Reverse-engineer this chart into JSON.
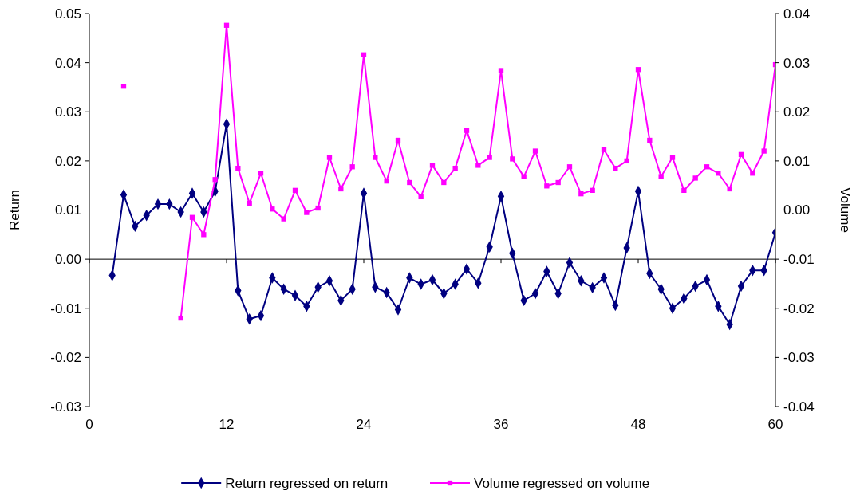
{
  "chart_data": {
    "type": "line",
    "xlabel": null,
    "ylabel": "Return",
    "y2label": "Volume",
    "x": [
      2,
      3,
      4,
      5,
      6,
      7,
      8,
      9,
      10,
      11,
      12,
      13,
      14,
      15,
      16,
      17,
      18,
      19,
      20,
      21,
      22,
      23,
      24,
      25,
      26,
      27,
      28,
      29,
      30,
      31,
      32,
      33,
      34,
      35,
      36,
      37,
      38,
      39,
      40,
      41,
      42,
      43,
      44,
      45,
      46,
      47,
      48,
      49,
      50,
      51,
      52,
      53,
      54,
      55,
      56,
      57,
      58,
      59,
      60
    ],
    "series": [
      {
        "name": "Return regressed on return",
        "color": "#000080",
        "marker": "diamond",
        "values": [
          -0.0033,
          0.0131,
          0.0067,
          0.0089,
          0.0112,
          0.0112,
          0.0096,
          0.0134,
          0.0096,
          0.0138,
          0.0275,
          -0.0064,
          -0.0122,
          -0.0115,
          -0.0038,
          -0.0061,
          -0.0074,
          -0.0096,
          -0.0057,
          -0.0044,
          -0.0084,
          -0.0061,
          0.0134,
          -0.0057,
          -0.0068,
          -0.0103,
          -0.0038,
          -0.0051,
          -0.0042,
          -0.007,
          -0.0051,
          -0.002,
          -0.0049,
          0.0025,
          0.0128,
          0.0012,
          -0.0084,
          -0.007,
          -0.0025,
          -0.007,
          -0.0007,
          -0.0044,
          -0.0058,
          -0.0038,
          -0.0094,
          0.0023,
          0.0138,
          -0.0029,
          -0.0061,
          -0.01,
          -0.008,
          -0.0055,
          -0.0042,
          -0.0096,
          -0.0133,
          -0.0055,
          -0.0023,
          -0.0023,
          0.0054
        ]
      },
      {
        "name": "Volume regressed on volume",
        "color": "#ff00ff",
        "marker": "square",
        "axis": "y2",
        "values": [
          null,
          0.0252,
          null,
          null,
          null,
          null,
          -0.022,
          -0.0015,
          -0.005,
          0.0062,
          0.0376,
          0.0085,
          0.0014,
          0.0075,
          0.0002,
          -0.0018,
          0.004,
          -0.0005,
          0.0004,
          0.0107,
          0.0043,
          0.0088,
          0.0316,
          0.0107,
          0.0059,
          0.0142,
          0.0056,
          0.0027,
          0.0091,
          0.0056,
          0.0085,
          0.0162,
          0.0091,
          0.0107,
          0.0284,
          0.0104,
          0.0068,
          0.012,
          0.0049,
          0.0056,
          0.0088,
          0.0033,
          0.004,
          0.0123,
          0.0085,
          0.01,
          0.0286,
          0.0142,
          0.0068,
          0.0107,
          0.004,
          0.0065,
          0.0088,
          0.0075,
          0.0043,
          0.0113,
          0.0075,
          0.012,
          0.0296
        ]
      }
    ],
    "xlim": [
      0,
      60
    ],
    "xticks": [
      0,
      12,
      24,
      36,
      48,
      60
    ],
    "ylim": [
      -0.03,
      0.05
    ],
    "yticks": [
      0.05,
      0.04,
      0.03,
      0.02,
      0.01,
      {
        "value": 0,
        "label": "0.00"
      },
      -0.01,
      -0.02,
      -0.03
    ],
    "y2lim": [
      -0.04,
      0.04
    ],
    "y2ticks": [
      0.04,
      0.03,
      0.02,
      0.01,
      {
        "value": 0,
        "label": "0.00"
      },
      -0.01,
      -0.02,
      -0.03,
      -0.04
    ],
    "legend": "bottom",
    "line_style": "solid"
  }
}
